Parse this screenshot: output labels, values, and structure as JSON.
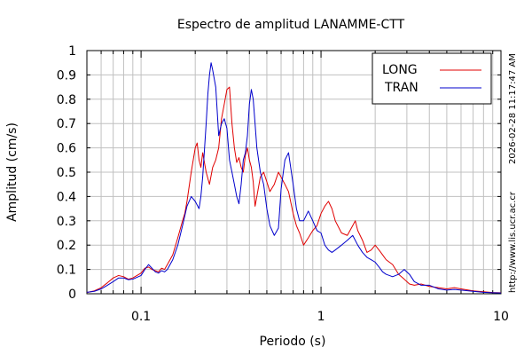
{
  "chart_data": {
    "type": "line",
    "title": "Espectro de amplitud LANAMME-CTT",
    "xlabel": "Periodo (s)",
    "ylabel": "Amplitud (cm/s)",
    "x_scale": "log",
    "xlim": [
      0.05,
      10
    ],
    "ylim": [
      0,
      1
    ],
    "x_ticks": [
      {
        "value": 0.1,
        "label": "0.1"
      },
      {
        "value": 1,
        "label": "1"
      },
      {
        "value": 10,
        "label": "10"
      }
    ],
    "y_ticks": [
      {
        "value": 0,
        "label": "0"
      },
      {
        "value": 0.1,
        "label": "0.1"
      },
      {
        "value": 0.2,
        "label": "0.2"
      },
      {
        "value": 0.3,
        "label": "0.3"
      },
      {
        "value": 0.4,
        "label": "0.4"
      },
      {
        "value": 0.5,
        "label": "0.5"
      },
      {
        "value": 0.6,
        "label": "0.6"
      },
      {
        "value": 0.7,
        "label": "0.7"
      },
      {
        "value": 0.8,
        "label": "0.8"
      },
      {
        "value": 0.9,
        "label": "0.9"
      },
      {
        "value": 1,
        "label": "1"
      }
    ],
    "grid": true,
    "legend_position": "top-right",
    "series": [
      {
        "name": "LONG",
        "color": "#e00000",
        "points": [
          [
            0.05,
            0.005
          ],
          [
            0.055,
            0.012
          ],
          [
            0.06,
            0.025
          ],
          [
            0.065,
            0.045
          ],
          [
            0.07,
            0.065
          ],
          [
            0.075,
            0.075
          ],
          [
            0.08,
            0.07
          ],
          [
            0.085,
            0.06
          ],
          [
            0.09,
            0.065
          ],
          [
            0.1,
            0.085
          ],
          [
            0.105,
            0.105
          ],
          [
            0.11,
            0.11
          ],
          [
            0.115,
            0.1
          ],
          [
            0.12,
            0.095
          ],
          [
            0.125,
            0.09
          ],
          [
            0.13,
            0.105
          ],
          [
            0.135,
            0.1
          ],
          [
            0.14,
            0.12
          ],
          [
            0.15,
            0.16
          ],
          [
            0.16,
            0.23
          ],
          [
            0.17,
            0.3
          ],
          [
            0.175,
            0.33
          ],
          [
            0.18,
            0.38
          ],
          [
            0.19,
            0.5
          ],
          [
            0.2,
            0.6
          ],
          [
            0.205,
            0.62
          ],
          [
            0.21,
            0.55
          ],
          [
            0.215,
            0.52
          ],
          [
            0.22,
            0.58
          ],
          [
            0.23,
            0.5
          ],
          [
            0.24,
            0.45
          ],
          [
            0.25,
            0.52
          ],
          [
            0.26,
            0.55
          ],
          [
            0.27,
            0.6
          ],
          [
            0.28,
            0.72
          ],
          [
            0.29,
            0.78
          ],
          [
            0.3,
            0.84
          ],
          [
            0.31,
            0.85
          ],
          [
            0.32,
            0.7
          ],
          [
            0.33,
            0.6
          ],
          [
            0.34,
            0.54
          ],
          [
            0.35,
            0.56
          ],
          [
            0.36,
            0.52
          ],
          [
            0.37,
            0.5
          ],
          [
            0.38,
            0.57
          ],
          [
            0.39,
            0.6
          ],
          [
            0.4,
            0.55
          ],
          [
            0.41,
            0.52
          ],
          [
            0.42,
            0.46
          ],
          [
            0.43,
            0.36
          ],
          [
            0.44,
            0.4
          ],
          [
            0.46,
            0.48
          ],
          [
            0.48,
            0.5
          ],
          [
            0.5,
            0.46
          ],
          [
            0.52,
            0.42
          ],
          [
            0.55,
            0.45
          ],
          [
            0.58,
            0.5
          ],
          [
            0.6,
            0.48
          ],
          [
            0.63,
            0.45
          ],
          [
            0.66,
            0.42
          ],
          [
            0.7,
            0.33
          ],
          [
            0.73,
            0.28
          ],
          [
            0.76,
            0.25
          ],
          [
            0.8,
            0.2
          ],
          [
            0.85,
            0.23
          ],
          [
            0.9,
            0.26
          ],
          [
            0.95,
            0.28
          ],
          [
            1.0,
            0.33
          ],
          [
            1.05,
            0.36
          ],
          [
            1.1,
            0.38
          ],
          [
            1.15,
            0.35
          ],
          [
            1.2,
            0.3
          ],
          [
            1.3,
            0.25
          ],
          [
            1.4,
            0.24
          ],
          [
            1.5,
            0.28
          ],
          [
            1.55,
            0.3
          ],
          [
            1.6,
            0.26
          ],
          [
            1.7,
            0.22
          ],
          [
            1.8,
            0.17
          ],
          [
            1.9,
            0.18
          ],
          [
            2.0,
            0.2
          ],
          [
            2.1,
            0.18
          ],
          [
            2.2,
            0.16
          ],
          [
            2.3,
            0.14
          ],
          [
            2.5,
            0.12
          ],
          [
            2.7,
            0.08
          ],
          [
            2.9,
            0.06
          ],
          [
            3.1,
            0.04
          ],
          [
            3.3,
            0.035
          ],
          [
            3.6,
            0.04
          ],
          [
            4.0,
            0.03
          ],
          [
            4.5,
            0.025
          ],
          [
            5.0,
            0.02
          ],
          [
            5.5,
            0.025
          ],
          [
            6.0,
            0.02
          ],
          [
            7.0,
            0.012
          ],
          [
            8.0,
            0.008
          ],
          [
            9.0,
            0.005
          ],
          [
            10.0,
            0.004
          ]
        ]
      },
      {
        "name": "TRAN",
        "color": "#0000cc",
        "points": [
          [
            0.05,
            0.006
          ],
          [
            0.055,
            0.01
          ],
          [
            0.06,
            0.02
          ],
          [
            0.065,
            0.035
          ],
          [
            0.07,
            0.05
          ],
          [
            0.075,
            0.065
          ],
          [
            0.08,
            0.065
          ],
          [
            0.085,
            0.058
          ],
          [
            0.09,
            0.06
          ],
          [
            0.1,
            0.075
          ],
          [
            0.105,
            0.1
          ],
          [
            0.11,
            0.12
          ],
          [
            0.115,
            0.105
          ],
          [
            0.12,
            0.09
          ],
          [
            0.125,
            0.085
          ],
          [
            0.13,
            0.095
          ],
          [
            0.135,
            0.09
          ],
          [
            0.14,
            0.1
          ],
          [
            0.15,
            0.14
          ],
          [
            0.16,
            0.2
          ],
          [
            0.17,
            0.28
          ],
          [
            0.18,
            0.36
          ],
          [
            0.19,
            0.4
          ],
          [
            0.2,
            0.38
          ],
          [
            0.21,
            0.35
          ],
          [
            0.215,
            0.4
          ],
          [
            0.22,
            0.48
          ],
          [
            0.23,
            0.7
          ],
          [
            0.235,
            0.82
          ],
          [
            0.24,
            0.9
          ],
          [
            0.245,
            0.95
          ],
          [
            0.25,
            0.92
          ],
          [
            0.26,
            0.85
          ],
          [
            0.265,
            0.75
          ],
          [
            0.27,
            0.65
          ],
          [
            0.28,
            0.7
          ],
          [
            0.29,
            0.72
          ],
          [
            0.3,
            0.68
          ],
          [
            0.31,
            0.55
          ],
          [
            0.32,
            0.5
          ],
          [
            0.33,
            0.45
          ],
          [
            0.34,
            0.4
          ],
          [
            0.35,
            0.37
          ],
          [
            0.36,
            0.45
          ],
          [
            0.37,
            0.55
          ],
          [
            0.38,
            0.58
          ],
          [
            0.39,
            0.65
          ],
          [
            0.4,
            0.78
          ],
          [
            0.41,
            0.84
          ],
          [
            0.42,
            0.8
          ],
          [
            0.43,
            0.7
          ],
          [
            0.44,
            0.6
          ],
          [
            0.46,
            0.5
          ],
          [
            0.48,
            0.45
          ],
          [
            0.5,
            0.35
          ],
          [
            0.52,
            0.28
          ],
          [
            0.55,
            0.24
          ],
          [
            0.58,
            0.27
          ],
          [
            0.6,
            0.43
          ],
          [
            0.63,
            0.55
          ],
          [
            0.66,
            0.58
          ],
          [
            0.7,
            0.45
          ],
          [
            0.73,
            0.35
          ],
          [
            0.76,
            0.3
          ],
          [
            0.8,
            0.3
          ],
          [
            0.85,
            0.34
          ],
          [
            0.9,
            0.3
          ],
          [
            0.95,
            0.26
          ],
          [
            1.0,
            0.25
          ],
          [
            1.05,
            0.2
          ],
          [
            1.1,
            0.18
          ],
          [
            1.15,
            0.17
          ],
          [
            1.2,
            0.18
          ],
          [
            1.3,
            0.2
          ],
          [
            1.4,
            0.22
          ],
          [
            1.5,
            0.24
          ],
          [
            1.6,
            0.2
          ],
          [
            1.7,
            0.17
          ],
          [
            1.8,
            0.15
          ],
          [
            1.9,
            0.14
          ],
          [
            2.0,
            0.13
          ],
          [
            2.1,
            0.11
          ],
          [
            2.2,
            0.09
          ],
          [
            2.3,
            0.08
          ],
          [
            2.5,
            0.07
          ],
          [
            2.7,
            0.08
          ],
          [
            2.9,
            0.1
          ],
          [
            3.1,
            0.08
          ],
          [
            3.3,
            0.05
          ],
          [
            3.6,
            0.035
          ],
          [
            4.0,
            0.035
          ],
          [
            4.5,
            0.02
          ],
          [
            5.0,
            0.015
          ],
          [
            5.5,
            0.018
          ],
          [
            6.0,
            0.015
          ],
          [
            7.0,
            0.01
          ],
          [
            8.0,
            0.006
          ],
          [
            9.0,
            0.004
          ],
          [
            10.0,
            0.003
          ]
        ]
      }
    ],
    "side_labels": {
      "timestamp": "2026-02-28 11:17:47 AM",
      "url": "http://www.lis.ucr.ac.cr"
    }
  }
}
